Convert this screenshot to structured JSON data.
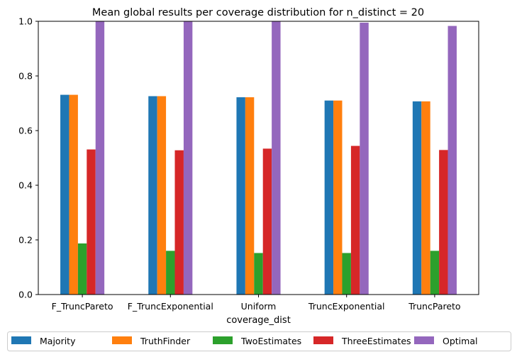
{
  "chart_data": {
    "type": "bar",
    "title": "Mean global results per coverage distribution for n_distinct = 20",
    "xlabel": "coverage_dist",
    "ylabel": "",
    "ylim": [
      0,
      1.0
    ],
    "yticks": [
      "0.0",
      "0.2",
      "0.4",
      "0.6",
      "0.8",
      "1.0"
    ],
    "categories": [
      "F_TruncPareto",
      "F_TruncExponential",
      "Uniform",
      "TruncExponential",
      "TruncPareto"
    ],
    "series": [
      {
        "name": "Majority",
        "color": "#1f77b4",
        "values": [
          0.731,
          0.726,
          0.722,
          0.71,
          0.707
        ]
      },
      {
        "name": "TruthFinder",
        "color": "#ff7f0e",
        "values": [
          0.731,
          0.726,
          0.722,
          0.71,
          0.707
        ]
      },
      {
        "name": "TwoEstimates",
        "color": "#2ca02c",
        "values": [
          0.187,
          0.16,
          0.152,
          0.152,
          0.16
        ]
      },
      {
        "name": "ThreeEstimates",
        "color": "#d62728",
        "values": [
          0.531,
          0.528,
          0.534,
          0.544,
          0.529
        ]
      },
      {
        "name": "Optimal",
        "color": "#9467bd",
        "values": [
          1.0,
          1.0,
          1.0,
          0.995,
          0.983
        ]
      }
    ],
    "grid": false,
    "legend_position": "bottom"
  }
}
